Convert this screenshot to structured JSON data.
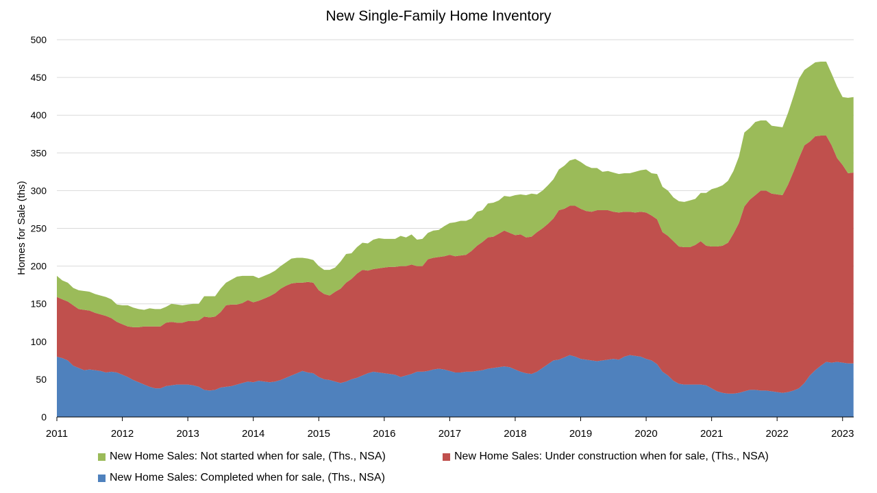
{
  "chart_data": {
    "type": "area",
    "stacked": true,
    "title": "New Single-Family Home Inventory",
    "ylabel": "Homes for Sale (ths)",
    "xlabel": "",
    "ylim": [
      0,
      500
    ],
    "yticks": [
      0,
      50,
      100,
      150,
      200,
      250,
      300,
      350,
      400,
      450,
      500
    ],
    "xlim": [
      2011,
      2023.17
    ],
    "xticks": [
      "2011",
      "2012",
      "2013",
      "2014",
      "2015",
      "2016",
      "2017",
      "2018",
      "2019",
      "2020",
      "2021",
      "2022",
      "2023"
    ],
    "grid": true,
    "legend_position": "bottom",
    "x": [
      2011.0,
      2011.083,
      2011.167,
      2011.25,
      2011.333,
      2011.417,
      2011.5,
      2011.583,
      2011.667,
      2011.75,
      2011.833,
      2011.917,
      2012.0,
      2012.083,
      2012.167,
      2012.25,
      2012.333,
      2012.417,
      2012.5,
      2012.583,
      2012.667,
      2012.75,
      2012.833,
      2012.917,
      2013.0,
      2013.083,
      2013.167,
      2013.25,
      2013.333,
      2013.417,
      2013.5,
      2013.583,
      2013.667,
      2013.75,
      2013.833,
      2013.917,
      2014.0,
      2014.083,
      2014.167,
      2014.25,
      2014.333,
      2014.417,
      2014.5,
      2014.583,
      2014.667,
      2014.75,
      2014.833,
      2014.917,
      2015.0,
      2015.083,
      2015.167,
      2015.25,
      2015.333,
      2015.417,
      2015.5,
      2015.583,
      2015.667,
      2015.75,
      2015.833,
      2015.917,
      2016.0,
      2016.083,
      2016.167,
      2016.25,
      2016.333,
      2016.417,
      2016.5,
      2016.583,
      2016.667,
      2016.75,
      2016.833,
      2016.917,
      2017.0,
      2017.083,
      2017.167,
      2017.25,
      2017.333,
      2017.417,
      2017.5,
      2017.583,
      2017.667,
      2017.75,
      2017.833,
      2017.917,
      2018.0,
      2018.083,
      2018.167,
      2018.25,
      2018.333,
      2018.417,
      2018.5,
      2018.583,
      2018.667,
      2018.75,
      2018.833,
      2018.917,
      2019.0,
      2019.083,
      2019.167,
      2019.25,
      2019.333,
      2019.417,
      2019.5,
      2019.583,
      2019.667,
      2019.75,
      2019.833,
      2019.917,
      2020.0,
      2020.083,
      2020.167,
      2020.25,
      2020.333,
      2020.417,
      2020.5,
      2020.583,
      2020.667,
      2020.75,
      2020.833,
      2020.917,
      2021.0,
      2021.083,
      2021.167,
      2021.25,
      2021.333,
      2021.417,
      2021.5,
      2021.583,
      2021.667,
      2021.75,
      2021.833,
      2021.917,
      2022.0,
      2022.083,
      2022.167,
      2022.25,
      2022.333,
      2022.417,
      2022.5,
      2022.583,
      2022.667,
      2022.75,
      2022.833,
      2022.917,
      2023.0,
      2023.083,
      2023.167
    ],
    "series": [
      {
        "name": "New Home Sales: Completed when for sale, (Ths., NSA)",
        "color": "#4F81BD",
        "values": [
          80,
          78,
          75,
          68,
          65,
          62,
          63,
          62,
          61,
          59,
          60,
          59,
          56,
          53,
          49,
          46,
          43,
          40,
          38,
          38,
          41,
          42,
          43,
          43,
          43,
          42,
          40,
          36,
          35,
          36,
          39,
          40,
          41,
          43,
          45,
          47,
          46,
          48,
          47,
          46,
          47,
          49,
          52,
          55,
          58,
          61,
          59,
          58,
          53,
          50,
          49,
          47,
          45,
          47,
          50,
          52,
          55,
          58,
          60,
          59,
          58,
          57,
          56,
          53,
          55,
          57,
          60,
          60,
          61,
          63,
          64,
          63,
          61,
          59,
          59,
          60,
          60,
          61,
          62,
          64,
          65,
          66,
          67,
          66,
          63,
          60,
          58,
          57,
          60,
          65,
          70,
          75,
          76,
          79,
          82,
          80,
          77,
          76,
          75,
          74,
          75,
          76,
          77,
          76,
          80,
          82,
          81,
          80,
          77,
          75,
          70,
          60,
          55,
          48,
          44,
          43,
          43,
          43,
          43,
          42,
          38,
          34,
          32,
          31,
          31,
          32,
          34,
          36,
          36,
          35,
          35,
          34,
          33,
          32,
          33,
          35,
          38,
          45,
          55,
          62,
          68,
          73,
          72,
          73,
          72,
          71,
          71
        ]
      },
      {
        "name": "New Home Sales: Under construction when for sale, (Ths., NSA)",
        "color": "#C0504D",
        "values": [
          79,
          78,
          78,
          80,
          78,
          80,
          78,
          76,
          75,
          75,
          71,
          67,
          67,
          67,
          70,
          73,
          77,
          80,
          82,
          82,
          84,
          84,
          82,
          82,
          84,
          85,
          88,
          97,
          97,
          97,
          100,
          108,
          108,
          106,
          106,
          108,
          106,
          106,
          110,
          114,
          117,
          121,
          122,
          122,
          120,
          117,
          120,
          120,
          115,
          113,
          112,
          119,
          125,
          131,
          133,
          138,
          140,
          136,
          136,
          138,
          140,
          142,
          143,
          147,
          145,
          145,
          140,
          140,
          148,
          148,
          148,
          150,
          154,
          154,
          155,
          155,
          160,
          166,
          170,
          174,
          174,
          177,
          180,
          178,
          178,
          182,
          180,
          182,
          185,
          185,
          186,
          188,
          198,
          197,
          198,
          200,
          199,
          197,
          197,
          200,
          199,
          198,
          195,
          195,
          192,
          190,
          190,
          192,
          194,
          192,
          192,
          185,
          185,
          185,
          182,
          182,
          182,
          185,
          190,
          185,
          188,
          192,
          195,
          200,
          212,
          225,
          245,
          252,
          258,
          265,
          265,
          262,
          262,
          262,
          275,
          290,
          305,
          315,
          310,
          310,
          305,
          300,
          288,
          270,
          262,
          252,
          253
        ]
      },
      {
        "name": "New Home Sales: Not started when for sale, (Ths., NSA)",
        "color": "#9BBB59",
        "values": [
          28,
          25,
          25,
          23,
          25,
          25,
          25,
          25,
          25,
          25,
          25,
          23,
          25,
          28,
          26,
          24,
          22,
          24,
          23,
          23,
          21,
          24,
          24,
          23,
          22,
          23,
          22,
          27,
          28,
          27,
          31,
          30,
          33,
          37,
          36,
          32,
          35,
          30,
          30,
          30,
          30,
          30,
          31,
          33,
          33,
          33,
          31,
          30,
          32,
          32,
          34,
          32,
          36,
          38,
          34,
          35,
          36,
          36,
          39,
          40,
          38,
          37,
          37,
          40,
          38,
          40,
          35,
          36,
          35,
          36,
          36,
          40,
          42,
          45,
          46,
          45,
          43,
          45,
          42,
          45,
          45,
          44,
          46,
          48,
          53,
          53,
          56,
          57,
          50,
          50,
          51,
          52,
          54,
          57,
          60,
          62,
          62,
          60,
          58,
          56,
          51,
          52,
          52,
          51,
          51,
          51,
          54,
          55,
          57,
          56,
          60,
          60,
          60,
          58,
          60,
          60,
          62,
          61,
          64,
          70,
          76,
          78,
          80,
          82,
          83,
          88,
          98,
          95,
          97,
          93,
          93,
          90,
          90,
          90,
          95,
          100,
          105,
          100,
          100,
          98,
          98,
          98,
          95,
          95,
          90,
          100,
          100
        ]
      }
    ]
  }
}
